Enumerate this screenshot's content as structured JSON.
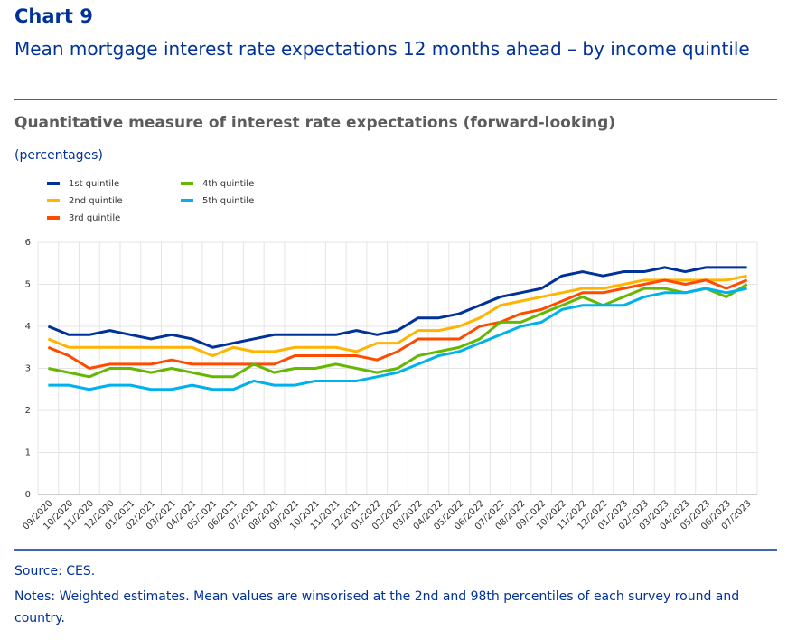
{
  "chart_data": {
    "type": "line",
    "label": "Chart 9",
    "title": "Mean mortgage interest rate expectations 12 months ahead – by income quintile",
    "subtitle": "Quantitative measure of interest rate expectations (forward-looking)",
    "y_axis_label": "(percentages)",
    "source": "Source: CES.",
    "notes": "Notes: Weighted estimates. Mean values are winsorised at the 2nd and 98th percentiles of each survey round and country.",
    "categories": [
      "09/2020",
      "10/2020",
      "11/2020",
      "12/2020",
      "01/2021",
      "02/2021",
      "03/2021",
      "04/2021",
      "05/2021",
      "06/2021",
      "07/2021",
      "08/2021",
      "09/2021",
      "10/2021",
      "11/2021",
      "12/2021",
      "01/2022",
      "02/2022",
      "03/2022",
      "04/2022",
      "05/2022",
      "06/2022",
      "07/2022",
      "08/2022",
      "09/2022",
      "10/2022",
      "11/2022",
      "12/2022",
      "01/2023",
      "02/2023",
      "03/2023",
      "04/2023",
      "05/2023",
      "06/2023",
      "07/2023"
    ],
    "series": [
      {
        "name": "1st quintile",
        "color": "#003299",
        "values": [
          4.0,
          3.8,
          3.8,
          3.9,
          3.8,
          3.7,
          3.8,
          3.7,
          3.5,
          3.6,
          3.7,
          3.8,
          3.8,
          3.8,
          3.8,
          3.9,
          3.8,
          3.9,
          4.2,
          4.2,
          4.3,
          4.5,
          4.7,
          4.8,
          4.9,
          5.2,
          5.3,
          5.2,
          5.3,
          5.3,
          5.4,
          5.3,
          5.4,
          5.4,
          5.4
        ]
      },
      {
        "name": "2nd quintile",
        "color": "#ffb400",
        "values": [
          3.7,
          3.5,
          3.5,
          3.5,
          3.5,
          3.5,
          3.5,
          3.5,
          3.3,
          3.5,
          3.4,
          3.4,
          3.5,
          3.5,
          3.5,
          3.4,
          3.6,
          3.6,
          3.9,
          3.9,
          4.0,
          4.2,
          4.5,
          4.6,
          4.7,
          4.8,
          4.9,
          4.9,
          5.0,
          5.1,
          5.1,
          5.1,
          5.1,
          5.1,
          5.2
        ]
      },
      {
        "name": "3rd quintile",
        "color": "#ff4b00",
        "values": [
          3.5,
          3.3,
          3.0,
          3.1,
          3.1,
          3.1,
          3.2,
          3.1,
          3.1,
          3.1,
          3.1,
          3.1,
          3.3,
          3.3,
          3.3,
          3.3,
          3.2,
          3.4,
          3.7,
          3.7,
          3.7,
          4.0,
          4.1,
          4.3,
          4.4,
          4.6,
          4.8,
          4.8,
          4.9,
          5.0,
          5.1,
          5.0,
          5.1,
          4.9,
          5.1
        ]
      },
      {
        "name": "4th quintile",
        "color": "#65b800",
        "values": [
          3.0,
          2.9,
          2.8,
          3.0,
          3.0,
          2.9,
          3.0,
          2.9,
          2.8,
          2.8,
          3.1,
          2.9,
          3.0,
          3.0,
          3.1,
          3.0,
          2.9,
          3.0,
          3.3,
          3.4,
          3.5,
          3.7,
          4.1,
          4.1,
          4.3,
          4.5,
          4.7,
          4.5,
          4.7,
          4.9,
          4.9,
          4.8,
          4.9,
          4.7,
          5.0
        ]
      },
      {
        "name": "5th quintile",
        "color": "#00b1ea",
        "values": [
          2.6,
          2.6,
          2.5,
          2.6,
          2.6,
          2.5,
          2.5,
          2.6,
          2.5,
          2.5,
          2.7,
          2.6,
          2.6,
          2.7,
          2.7,
          2.7,
          2.8,
          2.9,
          3.1,
          3.3,
          3.4,
          3.6,
          3.8,
          4.0,
          4.1,
          4.4,
          4.5,
          4.5,
          4.5,
          4.7,
          4.8,
          4.8,
          4.9,
          4.8,
          4.9
        ]
      }
    ],
    "ylim": [
      0,
      6
    ],
    "yticks": [
      0,
      1,
      2,
      3,
      4,
      5,
      6
    ],
    "grid": true
  }
}
